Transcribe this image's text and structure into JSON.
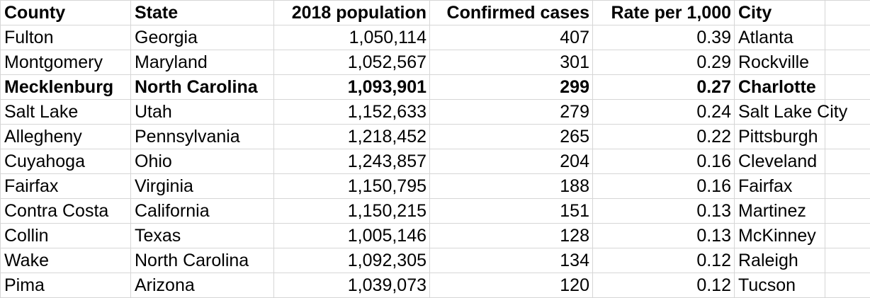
{
  "table": {
    "headers": [
      "County",
      "State",
      "2018 population",
      "Confirmed cases",
      "Rate per 1,000",
      "City"
    ],
    "rows": [
      {
        "county": "Fulton",
        "state": "Georgia",
        "population": "1,050,114",
        "cases": "407",
        "rate": "0.39",
        "city": "Atlanta",
        "bold": false
      },
      {
        "county": "Montgomery",
        "state": "Maryland",
        "population": "1,052,567",
        "cases": "301",
        "rate": "0.29",
        "city": "Rockville",
        "bold": false
      },
      {
        "county": "Mecklenburg",
        "state": "North Carolina",
        "population": "1,093,901",
        "cases": "299",
        "rate": "0.27",
        "city": "Charlotte",
        "bold": true
      },
      {
        "county": "Salt Lake",
        "state": "Utah",
        "population": "1,152,633",
        "cases": "279",
        "rate": "0.24",
        "city": "Salt Lake City",
        "bold": false
      },
      {
        "county": "Allegheny",
        "state": "Pennsylvania",
        "population": "1,218,452",
        "cases": "265",
        "rate": "0.22",
        "city": "Pittsburgh",
        "bold": false
      },
      {
        "county": "Cuyahoga",
        "state": "Ohio",
        "population": "1,243,857",
        "cases": "204",
        "rate": "0.16",
        "city": "Cleveland",
        "bold": false
      },
      {
        "county": "Fairfax",
        "state": "Virginia",
        "population": "1,150,795",
        "cases": "188",
        "rate": "0.16",
        "city": "Fairfax",
        "bold": false
      },
      {
        "county": "Contra Costa",
        "state": "California",
        "population": "1,150,215",
        "cases": "151",
        "rate": "0.13",
        "city": "Martinez",
        "bold": false
      },
      {
        "county": "Collin",
        "state": "Texas",
        "population": "1,005,146",
        "cases": "128",
        "rate": "0.13",
        "city": "McKinney",
        "bold": false
      },
      {
        "county": "Wake",
        "state": "North Carolina",
        "population": "1,092,305",
        "cases": "134",
        "rate": "0.12",
        "city": "Raleigh",
        "bold": false
      },
      {
        "county": "Pima",
        "state": "Arizona",
        "population": "1,039,073",
        "cases": "120",
        "rate": "0.12",
        "city": "Tucson",
        "bold": false
      }
    ]
  }
}
